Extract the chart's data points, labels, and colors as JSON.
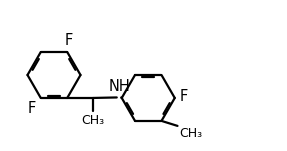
{
  "bg_color": "#ffffff",
  "bond_color": "#000000",
  "bond_lw": 1.6,
  "label_fontsize": 10.5,
  "label_color": "#000000",
  "fig_w": 2.87,
  "fig_h": 1.51,
  "dpi": 100,
  "xlim": [
    0.0,
    2.87
  ],
  "ylim": [
    0.0,
    1.51
  ]
}
